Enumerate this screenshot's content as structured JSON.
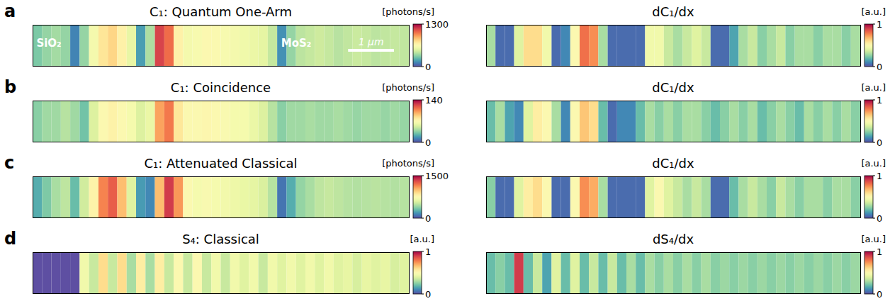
{
  "chart_data": [
    {
      "type": "heatmap",
      "panel_label": "a",
      "title": "C₁: Quantum One-Arm",
      "xlim": [
        0,
        8.2
      ],
      "tick_labels": false,
      "values": [
        300,
        350,
        380,
        350,
        120,
        350,
        600,
        750,
        800,
        700,
        550,
        180,
        400,
        1150,
        1050,
        700,
        600,
        620,
        650,
        640,
        620,
        600,
        580,
        560,
        540,
        450,
        150,
        350,
        430,
        450,
        470,
        450,
        420,
        440,
        460,
        450,
        430,
        440,
        450,
        440
      ],
      "colorbar": {
        "label": "[photons/s]",
        "range": [
          0,
          1300
        ],
        "ticks": [
          0,
          1300
        ]
      },
      "annotations": [
        {
          "text": "SiO₂"
        },
        {
          "text": "MoS₂"
        }
      ],
      "scale_bar": {
        "value": 1,
        "label": "1 μm"
      }
    },
    {
      "type": "heatmap",
      "title": "dC₁/dx",
      "xlim": [
        0,
        8.2
      ],
      "tick_labels": false,
      "values": [
        0.3,
        0.05,
        0.05,
        0.4,
        0.6,
        0.6,
        0.45,
        0.05,
        0.1,
        0.5,
        0.8,
        0.75,
        0.3,
        0.05,
        0.05,
        0.05,
        0.05,
        0.45,
        0.45,
        0.35,
        0.3,
        0.35,
        0.4,
        0.35,
        0.05,
        0.05,
        0.15,
        0.3,
        0.35,
        0.25,
        0.3,
        0.35,
        0.25,
        0.3,
        0.3,
        0.25,
        0.3,
        0.3,
        0.25,
        0.3
      ],
      "colorbar": {
        "label": "[a.u.]",
        "range": [
          0,
          1
        ],
        "ticks": [
          0,
          1
        ]
      }
    },
    {
      "type": "heatmap",
      "panel_label": "b",
      "title": "C₁: Coincidence",
      "xlim": [
        0,
        8.2
      ],
      "tick_labels": false,
      "values": [
        35,
        40,
        40,
        45,
        40,
        30,
        55,
        70,
        75,
        70,
        65,
        55,
        60,
        100,
        110,
        80,
        70,
        70,
        72,
        70,
        68,
        65,
        65,
        60,
        55,
        45,
        35,
        40,
        40,
        42,
        40,
        40,
        42,
        40,
        38,
        40,
        40,
        38,
        40,
        38
      ],
      "colorbar": {
        "label": "[photons/s]",
        "range": [
          0,
          140
        ],
        "ticks": [
          0,
          140
        ]
      }
    },
    {
      "type": "heatmap",
      "title": "dC₁/dx",
      "xlim": [
        0,
        8.2
      ],
      "tick_labels": false,
      "values": [
        0.2,
        0.3,
        0.15,
        0.1,
        0.4,
        0.55,
        0.5,
        0.3,
        0.1,
        0.5,
        0.65,
        0.6,
        0.2,
        0.05,
        0.1,
        0.1,
        0.2,
        0.3,
        0.25,
        0.3,
        0.25,
        0.3,
        0.3,
        0.25,
        0.2,
        0.25,
        0.3,
        0.25,
        0.3,
        0.2,
        0.25,
        0.3,
        0.25,
        0.2,
        0.3,
        0.25,
        0.3,
        0.25,
        0.3,
        0.25
      ],
      "colorbar": {
        "label": "[a.u.]",
        "range": [
          0,
          1
        ],
        "ticks": [
          0,
          1
        ]
      }
    },
    {
      "type": "heatmap",
      "panel_label": "c",
      "title": "C₁: Attenuated Classical",
      "xlim": [
        0,
        8.2
      ],
      "tick_labels": false,
      "values": [
        250,
        350,
        450,
        500,
        300,
        550,
        800,
        1150,
        1250,
        1000,
        600,
        200,
        150,
        1000,
        1350,
        1100,
        750,
        700,
        720,
        700,
        680,
        660,
        640,
        620,
        580,
        480,
        100,
        250,
        400,
        450,
        500,
        520,
        500,
        480,
        470,
        480,
        490,
        480,
        470,
        480
      ],
      "colorbar": {
        "label": "[photons/s]",
        "range": [
          0,
          1500
        ],
        "ticks": [
          0,
          1500
        ]
      }
    },
    {
      "type": "heatmap",
      "title": "dC₁/dx",
      "xlim": [
        0,
        8.2
      ],
      "tick_labels": false,
      "values": [
        0.25,
        0.05,
        0.05,
        0.4,
        0.55,
        0.6,
        0.5,
        0.05,
        0.05,
        0.5,
        0.75,
        0.7,
        0.3,
        0.05,
        0.05,
        0.05,
        0.05,
        0.4,
        0.5,
        0.4,
        0.35,
        0.3,
        0.35,
        0.3,
        0.05,
        0.05,
        0.2,
        0.3,
        0.35,
        0.3,
        0.25,
        0.35,
        0.3,
        0.25,
        0.3,
        0.3,
        0.25,
        0.3,
        0.3,
        0.25
      ],
      "colorbar": {
        "label": "[a.u.]",
        "range": [
          0,
          1
        ],
        "ticks": [
          0,
          1
        ]
      }
    },
    {
      "type": "heatmap",
      "panel_label": "d",
      "title": "S₄: Classical",
      "xlim": [
        0,
        8.2
      ],
      "tick_labels": false,
      "values": [
        0,
        0,
        0,
        0,
        0,
        0.45,
        0.35,
        0.6,
        0.35,
        0.6,
        0.3,
        0.55,
        0.3,
        0.55,
        0.35,
        0.5,
        0.35,
        0.5,
        0.35,
        0.45,
        0.35,
        0.45,
        0.4,
        0.45,
        0.35,
        0.45,
        0.4,
        0.45,
        0.4,
        0.45,
        0.4,
        0.45,
        0.4,
        0.42,
        0.38,
        0.42,
        0.4,
        0.42,
        0.38,
        0.4
      ],
      "colorbar": {
        "label": "[a.u.]",
        "range": [
          0,
          1
        ],
        "ticks": [
          0,
          1
        ]
      }
    },
    {
      "type": "heatmap",
      "title": "dS₄/dx",
      "xlim": [
        0,
        8.2
      ],
      "tick_labels": false,
      "values": [
        0.2,
        0.25,
        0.2,
        0.9,
        0.2,
        0.35,
        0.15,
        0.4,
        0.2,
        0.4,
        0.2,
        0.35,
        0.2,
        0.35,
        0.2,
        0.3,
        0.2,
        0.3,
        0.25,
        0.3,
        0.25,
        0.3,
        0.25,
        0.3,
        0.25,
        0.28,
        0.25,
        0.28,
        0.25,
        0.28,
        0.25,
        0.28,
        0.25,
        0.28,
        0.25,
        0.28,
        0.25,
        0.28,
        0.25,
        0.28
      ],
      "colorbar": {
        "label": "[a.u.]",
        "range": [
          0,
          1
        ],
        "ticks": [
          0,
          1
        ]
      }
    }
  ]
}
